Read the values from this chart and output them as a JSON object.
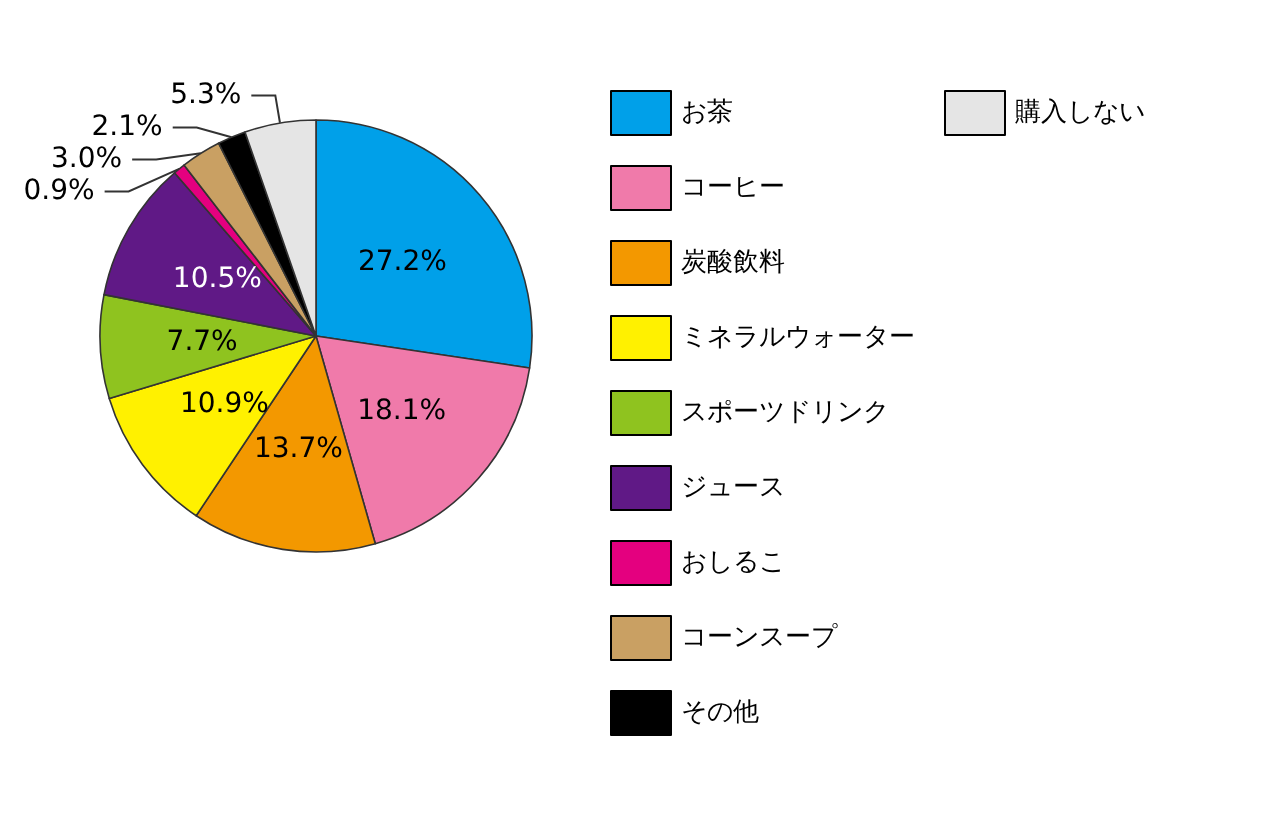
{
  "chart_data": {
    "type": "pie",
    "categories": [
      "お茶",
      "コーヒー",
      "炭酸飲料",
      "ミネラルウォーター",
      "スポーツドリンク",
      "ジュース",
      "おしるこ",
      "コーンスープ",
      "その他",
      "購入しない"
    ],
    "values": [
      27.2,
      18.1,
      13.7,
      10.9,
      7.7,
      10.5,
      0.9,
      3.0,
      2.1,
      5.3
    ],
    "value_labels": [
      "27.2%",
      "18.1%",
      "13.7%",
      "10.9%",
      "7.7%",
      "10.5%",
      "0.9%",
      "3.0%",
      "2.1%",
      "5.3%"
    ],
    "colors": [
      "#00a0e9",
      "#f07aaa",
      "#f39800",
      "#fff100",
      "#8fc31f",
      "#601986",
      "#e4007f",
      "#c9a063",
      "#000000",
      "#e5e5e5"
    ],
    "legend": "right"
  }
}
